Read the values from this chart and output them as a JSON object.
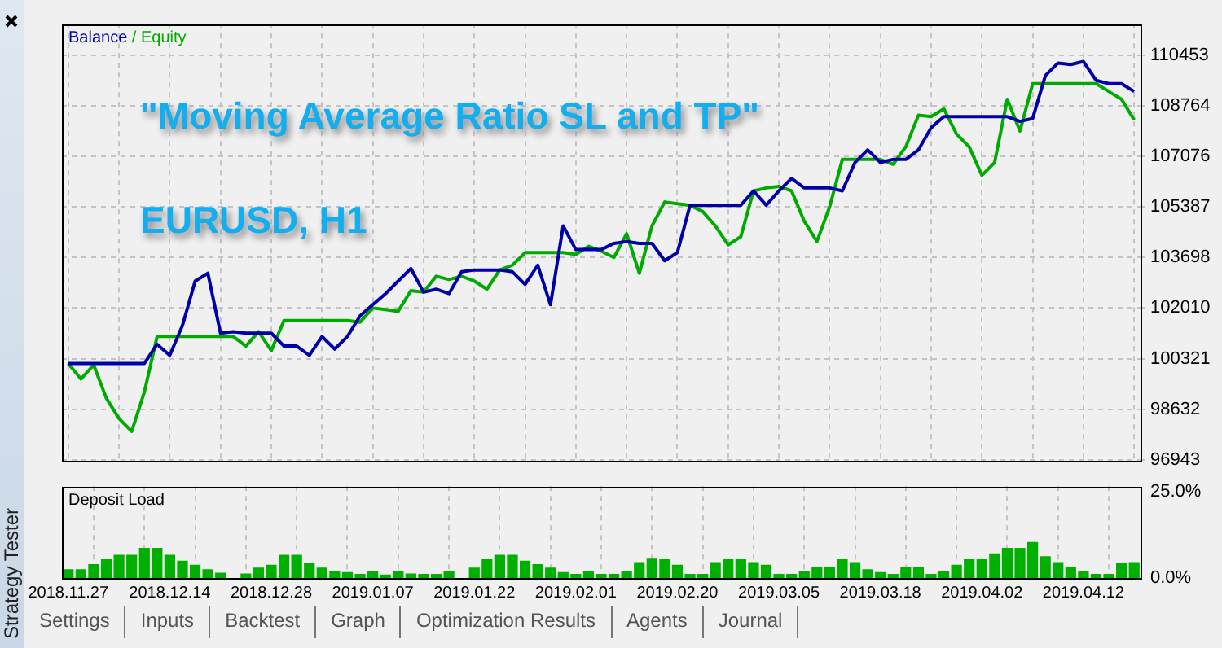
{
  "chart_data": [
    {
      "type": "line",
      "title": "\"Moving Average Ratio SL and TP\"",
      "subtitle": "EURUSD, H1",
      "categories": [
        "2018.11.27",
        null,
        null,
        null,
        null,
        null,
        null,
        null,
        "2018.12.14",
        null,
        null,
        null,
        null,
        null,
        null,
        null,
        "2018.12.28",
        null,
        null,
        null,
        null,
        null,
        null,
        null,
        "2019.01.07",
        null,
        null,
        null,
        null,
        null,
        null,
        null,
        "2019.01.22",
        null,
        null,
        null,
        null,
        null,
        null,
        null,
        "2019.02.01",
        null,
        null,
        null,
        null,
        null,
        null,
        null,
        "2019.02.20",
        null,
        null,
        null,
        null,
        null,
        null,
        null,
        "2019.03.05",
        null,
        null,
        null,
        null,
        null,
        null,
        null,
        "2019.03.18",
        null,
        null,
        null,
        null,
        null,
        null,
        null,
        "2019.04.02",
        null,
        null,
        null,
        null,
        null,
        null,
        null,
        "2019.04.12",
        null,
        null,
        null,
        null
      ],
      "series": [
        {
          "name": "Balance",
          "color": "#0000a8",
          "values": [
            100160,
            100160,
            100160,
            100160,
            100160,
            100160,
            100160,
            100800,
            100430,
            101430,
            102910,
            103170,
            101170,
            101220,
            101170,
            101170,
            101170,
            100740,
            100740,
            100430,
            101060,
            100640,
            101060,
            101750,
            102120,
            102490,
            102910,
            103330,
            102540,
            102640,
            102490,
            103220,
            103280,
            103280,
            103280,
            103220,
            102800,
            103440,
            102120,
            104750,
            103960,
            103960,
            103960,
            104170,
            104230,
            104170,
            104170,
            103590,
            103860,
            105440,
            105440,
            105440,
            105440,
            105440,
            105920,
            105440,
            105920,
            106340,
            106020,
            106020,
            106020,
            105920,
            106870,
            107290,
            106870,
            106970,
            106970,
            107290,
            108030,
            108400,
            108400,
            108400,
            108400,
            108400,
            108400,
            108240,
            108340,
            109770,
            110190,
            110140,
            110240,
            109610,
            109500,
            109500,
            109240
          ]
        },
        {
          "name": "Equity",
          "color": "#00aa00",
          "values": [
            100160,
            99640,
            100110,
            99000,
            98320,
            97890,
            99210,
            101060,
            101060,
            101060,
            101060,
            101060,
            101060,
            101060,
            100740,
            101220,
            100590,
            101590,
            101590,
            101590,
            101590,
            101590,
            101590,
            101540,
            102010,
            101960,
            101900,
            102590,
            102540,
            103070,
            102960,
            103070,
            102910,
            102640,
            103280,
            103440,
            103860,
            103860,
            103860,
            103860,
            103800,
            104070,
            103910,
            103700,
            104490,
            103170,
            104750,
            105550,
            105490,
            105440,
            105230,
            104750,
            104120,
            104390,
            105920,
            106020,
            106070,
            105920,
            104910,
            104230,
            105390,
            106970,
            106970,
            106970,
            106970,
            106810,
            107390,
            108450,
            108400,
            108660,
            107820,
            107390,
            106440,
            106870,
            108980,
            107920,
            109500,
            109500,
            109500,
            109500,
            109500,
            109500,
            109240,
            108980,
            108290
          ]
        }
      ],
      "ylim": [
        96943,
        111500
      ],
      "yticks": [
        96943,
        98632,
        100321,
        102010,
        103698,
        105387,
        107076,
        108764,
        110453
      ],
      "grid": true,
      "legend": "top left",
      "legend_title": "/",
      "tick_labels": "y",
      "annotations": [
        "Strategy Tester"
      ]
    },
    {
      "type": "bar",
      "title": "Deposit Load",
      "categories": [
        "2018.11.27",
        null,
        null,
        null,
        null,
        null,
        null,
        null,
        "2018.12.14",
        null,
        null,
        null,
        null,
        null,
        null,
        null,
        "2018.12.28",
        null,
        null,
        null,
        null,
        null,
        null,
        null,
        "2019.01.07",
        null,
        null,
        null,
        null,
        null,
        null,
        null,
        "2019.01.22",
        null,
        null,
        null,
        null,
        null,
        null,
        null,
        "2019.02.01",
        null,
        null,
        null,
        null,
        null,
        null,
        null,
        "2019.02.20",
        null,
        null,
        null,
        null,
        null,
        null,
        null,
        "2019.03.05",
        null,
        null,
        null,
        null,
        null,
        null,
        null,
        "2019.03.18",
        null,
        null,
        null,
        null,
        null,
        null,
        null,
        "2019.04.02",
        null,
        null,
        null,
        null,
        null,
        null,
        null,
        "2019.04.12",
        null,
        null,
        null,
        null
      ],
      "values": [
        2.5,
        2.5,
        4.0,
        5.4,
        6.7,
        6.7,
        8.7,
        8.7,
        6.7,
        5.0,
        3.8,
        2.5,
        1.5,
        0,
        1.3,
        3.0,
        3.8,
        6.7,
        6.7,
        4.2,
        3.0,
        2.0,
        1.7,
        1.2,
        2.1,
        1.0,
        2.0,
        1.3,
        1.2,
        1.2,
        2.0,
        0,
        3.0,
        5.4,
        6.7,
        6.7,
        5.0,
        4.0,
        3.0,
        1.7,
        1.2,
        2.0,
        1.2,
        1.2,
        2.0,
        4.6,
        5.6,
        5.4,
        3.8,
        1.2,
        1.2,
        4.6,
        5.4,
        5.4,
        4.6,
        3.8,
        1.2,
        1.2,
        2.0,
        3.3,
        3.3,
        5.4,
        4.6,
        2.5,
        1.7,
        1.2,
        3.3,
        3.3,
        1.2,
        2.0,
        3.8,
        5.4,
        5.4,
        7.1,
        8.7,
        8.7,
        10.4,
        6.3,
        4.6,
        3.3,
        2.0,
        1.2,
        1.2,
        4.2,
        4.6
      ],
      "color": "#00b000",
      "ylim": [
        0,
        26.5
      ],
      "yticks": [
        {
          "value": 0,
          "label": "0.0%"
        },
        {
          "value": 25,
          "label": "25.0%"
        }
      ],
      "grid": "x",
      "annotations": [
        "Settings",
        "Inputs",
        "Backtest",
        "Graph",
        "Optimization Results",
        "Agents",
        "Journal"
      ]
    }
  ]
}
